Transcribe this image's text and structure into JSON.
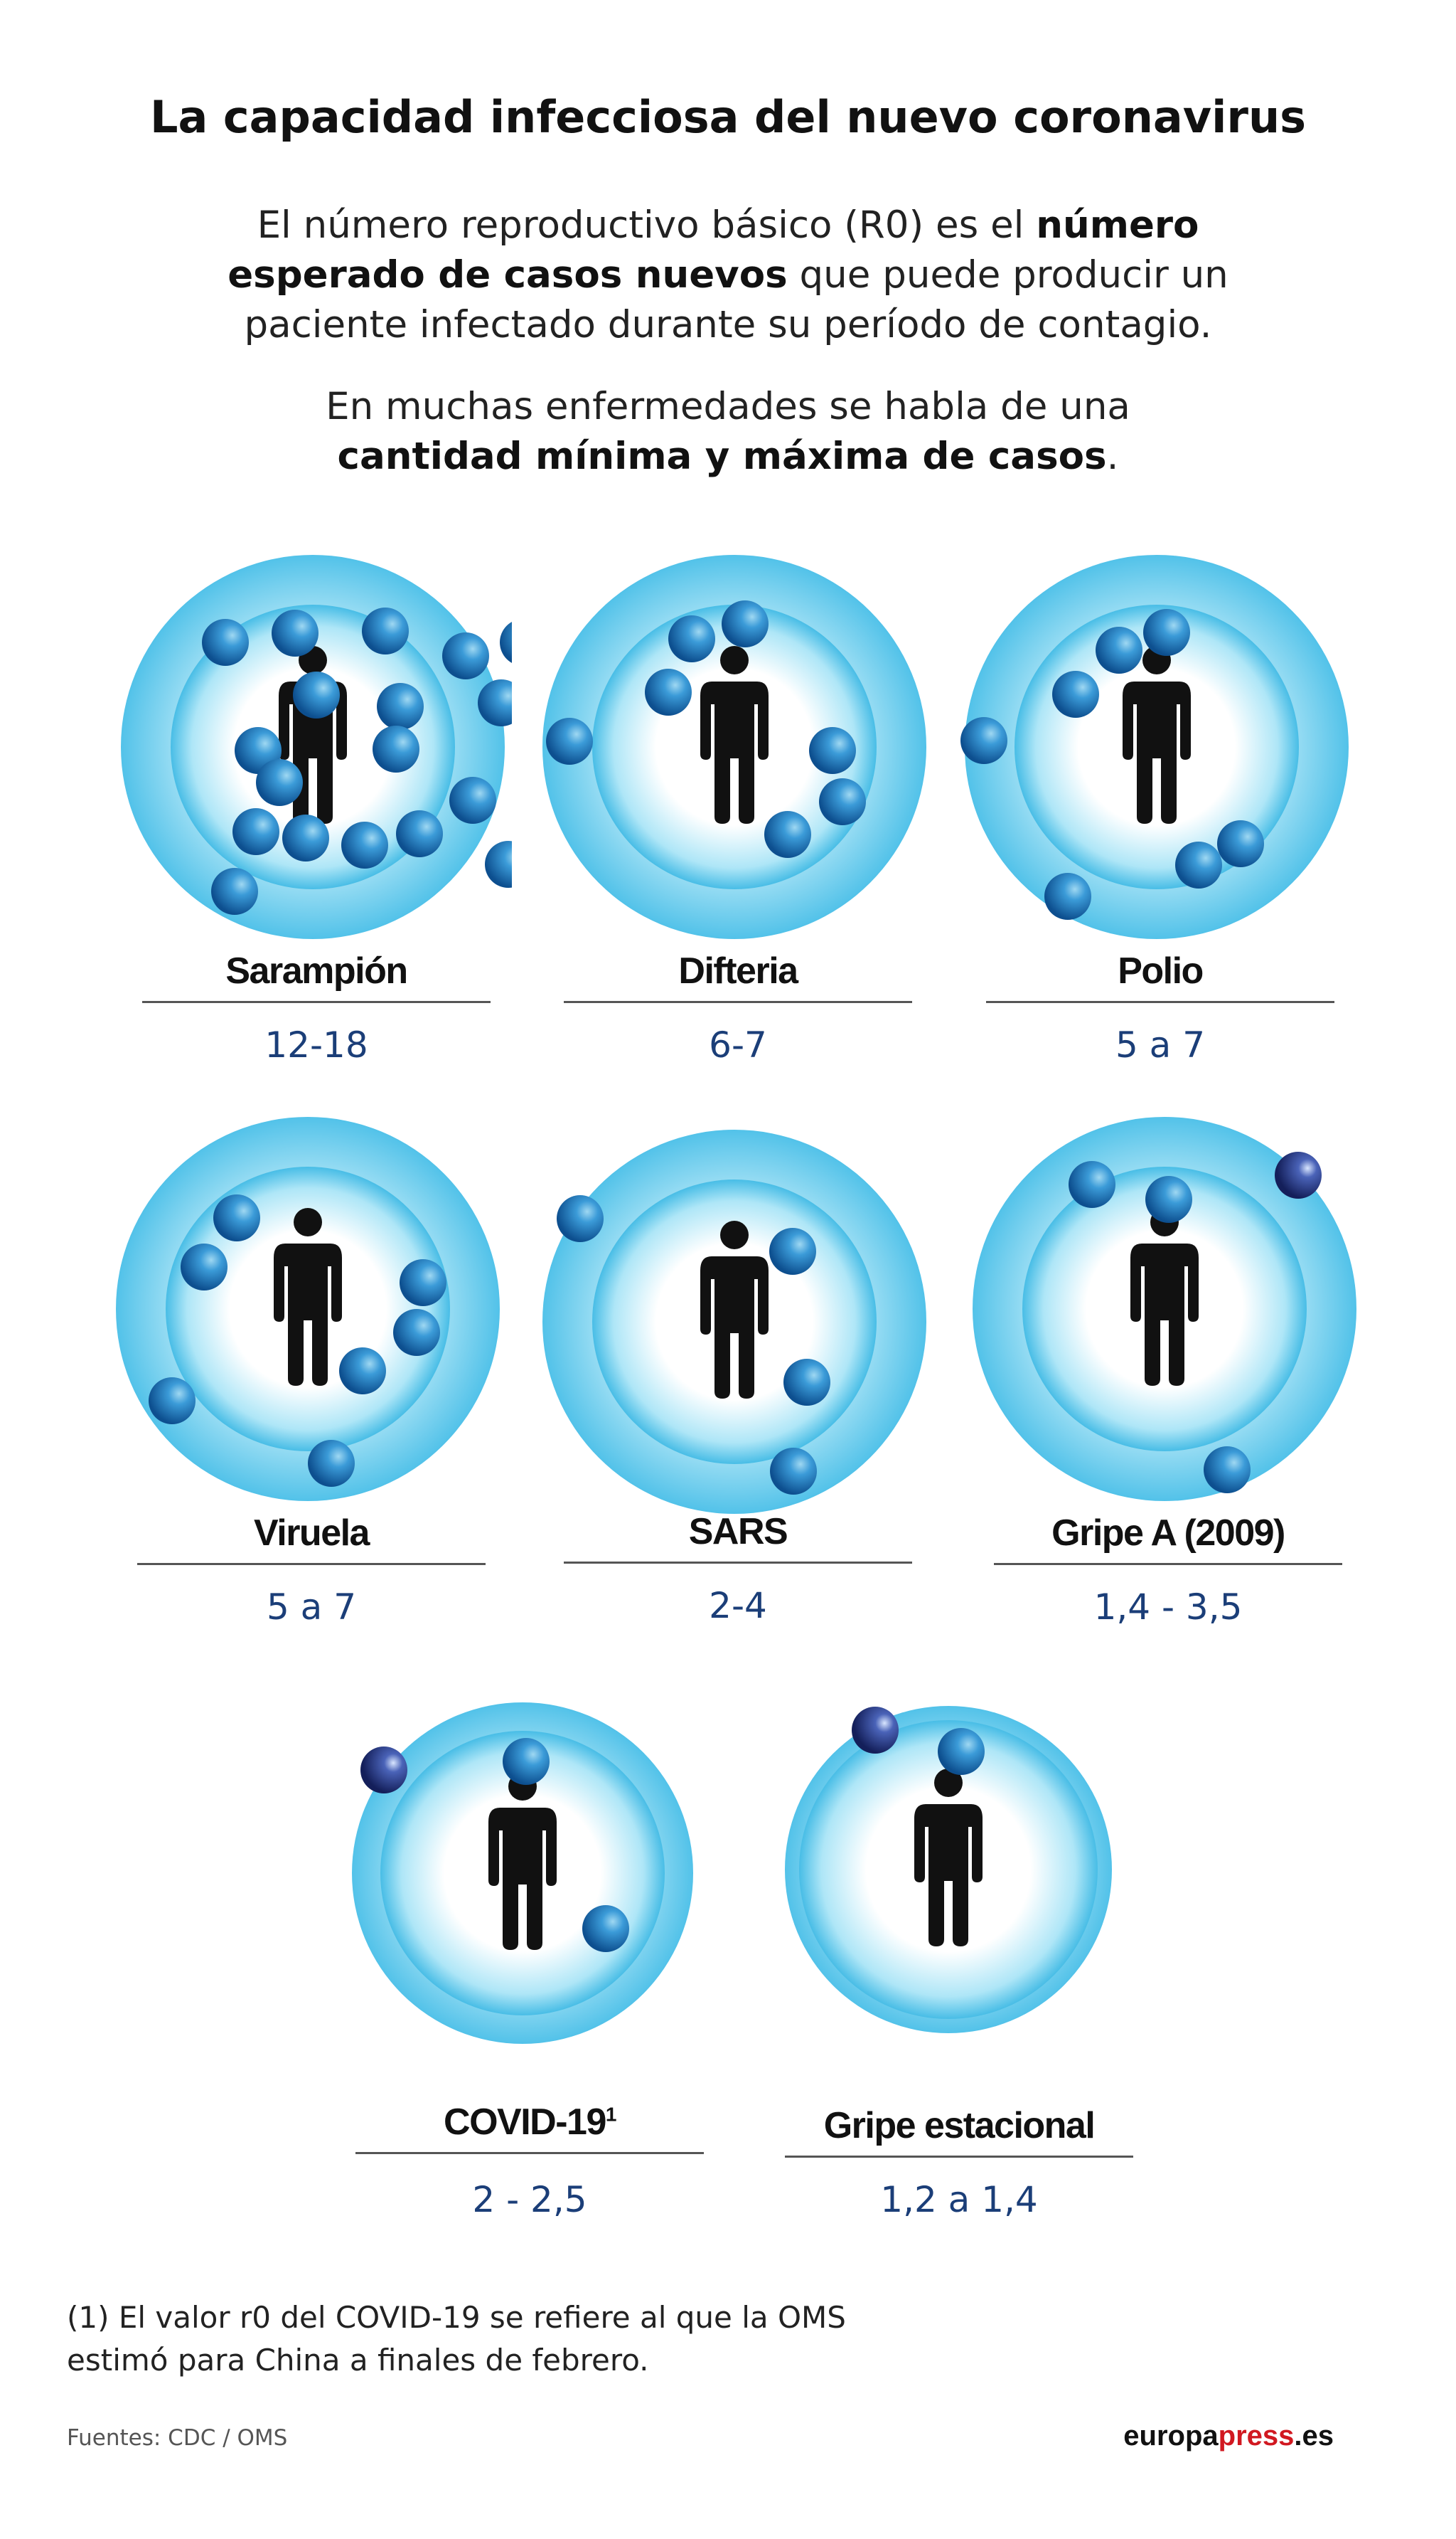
{
  "title": "La capacidad infecciosa del nuevo coronavirus",
  "intro": {
    "p1_pre": "El número reproductivo básico (R0) es el ",
    "p1_bold": "número esperado de casos nuevos",
    "p1_post": " que puede producir un paciente infectado durante su período de contagio.",
    "p2_pre": "En muchas enfermedades se habla de una ",
    "p2_bold": "cantidad mínima y máxima de casos",
    "p2_post": "."
  },
  "diseases": [
    {
      "name": "Sarampión",
      "value": "12-18",
      "sup": ""
    },
    {
      "name": "Difteria",
      "value": "6-7",
      "sup": ""
    },
    {
      "name": "Polio",
      "value": "5 a 7",
      "sup": ""
    },
    {
      "name": "Viruela",
      "value": "5 a 7",
      "sup": ""
    },
    {
      "name": "SARS",
      "value": "2-4",
      "sup": ""
    },
    {
      "name": "Gripe A (2009)",
      "value": "1,4 - 3,5",
      "sup": ""
    },
    {
      "name": "COVID-19",
      "value": "2 - 2,5",
      "sup": "1"
    },
    {
      "name": "Gripe estacional",
      "value": "1,2 a 1,4",
      "sup": ""
    }
  ],
  "footnote": "(1) El valor r0 del COVID-19 se refiere al que la OMS estimó para China a finales de febrero.",
  "sources": "Fuentes: CDC / OMS",
  "brand": {
    "part1": "europa",
    "part2": "press",
    "part3": ".es"
  },
  "colors": {
    "outer_ring": "#5cc6ea",
    "inner_ring": "#9fe0f5",
    "center": "#ffffff",
    "particle": "#1f7fc0",
    "value_text": "#1b3e78"
  },
  "icons": [
    "person-icon",
    "virus-particle-icon"
  ]
}
